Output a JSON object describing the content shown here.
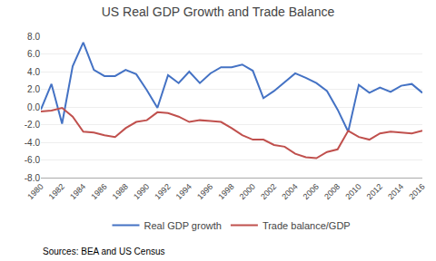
{
  "chart_data": {
    "type": "line",
    "title": "US Real GDP Growth and Trade Balance",
    "x": [
      1980,
      1981,
      1982,
      1983,
      1984,
      1985,
      1986,
      1987,
      1988,
      1989,
      1990,
      1991,
      1992,
      1993,
      1994,
      1995,
      1996,
      1997,
      1998,
      1999,
      2000,
      2001,
      2002,
      2003,
      2004,
      2005,
      2006,
      2007,
      2008,
      2009,
      2010,
      2011,
      2012,
      2013,
      2014,
      2015,
      2016
    ],
    "series": [
      {
        "name": "Real GDP growth",
        "color": "#4472C4",
        "values": [
          -0.3,
          2.6,
          -1.9,
          4.6,
          7.3,
          4.2,
          3.5,
          3.5,
          4.2,
          3.7,
          1.9,
          -0.1,
          3.6,
          2.7,
          4.0,
          2.7,
          3.8,
          4.5,
          4.5,
          4.8,
          4.1,
          1.0,
          1.8,
          2.8,
          3.8,
          3.3,
          2.7,
          1.8,
          -0.3,
          -2.8,
          2.5,
          1.6,
          2.2,
          1.7,
          2.4,
          2.6,
          1.6
        ]
      },
      {
        "name": "Trade balance/GDP",
        "color": "#C0504D",
        "values": [
          -0.5,
          -0.4,
          -0.1,
          -1.1,
          -2.8,
          -2.9,
          -3.2,
          -3.4,
          -2.4,
          -1.7,
          -1.5,
          -0.6,
          -0.7,
          -1.1,
          -1.7,
          -1.5,
          -1.6,
          -1.7,
          -2.4,
          -3.2,
          -3.7,
          -3.7,
          -4.3,
          -4.5,
          -5.3,
          -5.7,
          -5.8,
          -5.1,
          -4.8,
          -2.7,
          -3.4,
          -3.7,
          -3.0,
          -2.8,
          -2.9,
          -3.0,
          -2.7
        ]
      }
    ],
    "xlim": [
      1980,
      2016
    ],
    "xticks": [
      1980,
      1982,
      1984,
      1986,
      1988,
      1990,
      1992,
      1994,
      1996,
      1998,
      2000,
      2002,
      2004,
      2006,
      2008,
      2010,
      2012,
      2014,
      2016
    ],
    "ylim": [
      -8.0,
      8.0
    ],
    "yticks": [
      {
        "value": -8.0,
        "label": "-8.0"
      },
      {
        "value": -6.0,
        "label": "-6.0"
      },
      {
        "value": -4.0,
        "label": "-4.0"
      },
      {
        "value": -2.0,
        "label": "-2.0"
      },
      {
        "value": 0.0,
        "label": "0.0"
      },
      {
        "value": 2.0,
        "label": "2.0"
      },
      {
        "value": 4.0,
        "label": "4.0"
      },
      {
        "value": 6.0,
        "label": "6.0"
      },
      {
        "value": 8.0,
        "label": "8.0"
      }
    ],
    "grid": true,
    "legend": "bottom",
    "annotations": [
      "Sources: BEA and US Census"
    ]
  }
}
